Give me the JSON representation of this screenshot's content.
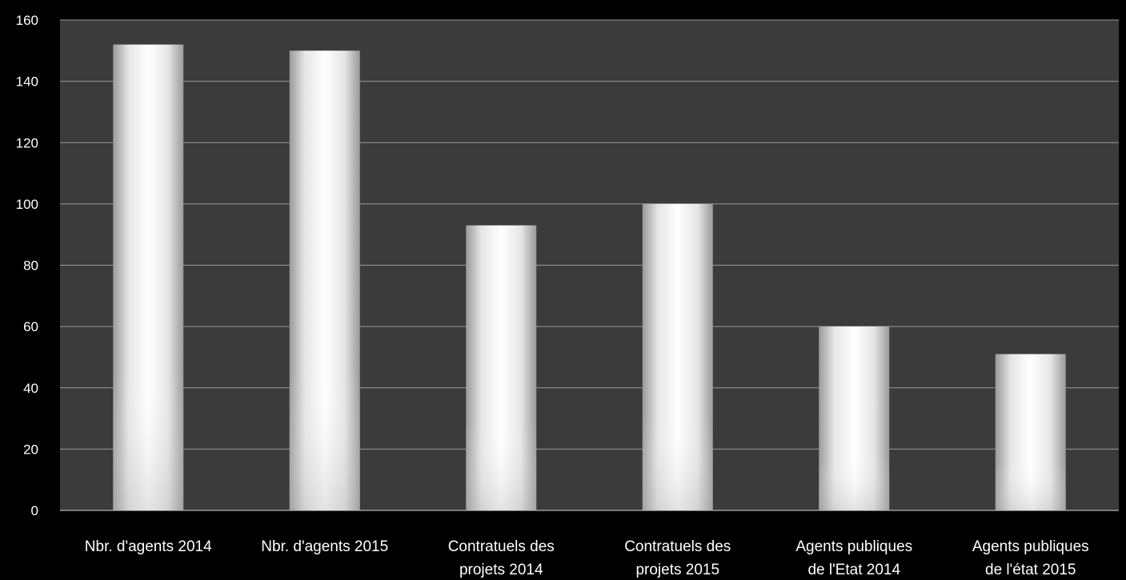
{
  "chart_data": {
    "type": "bar",
    "title": "",
    "xlabel": "",
    "ylabel": "",
    "ylim": [
      0,
      160
    ],
    "yticks": [
      0,
      20,
      40,
      60,
      80,
      100,
      120,
      140,
      160
    ],
    "grid": true,
    "legend": "none",
    "categories": [
      [
        "Nbr. d'agents 2014"
      ],
      [
        "Nbr. d'agents 2015"
      ],
      [
        "Contratuels des",
        "projets 2014"
      ],
      [
        "Contratuels des",
        "projets 2015"
      ],
      [
        "Agents publiques",
        "de l'Etat 2014"
      ],
      [
        "Agents publiques",
        "de l'état  2015"
      ]
    ],
    "values": [
      152,
      150,
      93,
      100,
      60,
      51
    ],
    "colors": {
      "background": "#000000",
      "plot_area": "#3b3b3b",
      "gridline": "#9a9a9a",
      "bar": "#ffffff",
      "text": "#ffffff"
    }
  }
}
